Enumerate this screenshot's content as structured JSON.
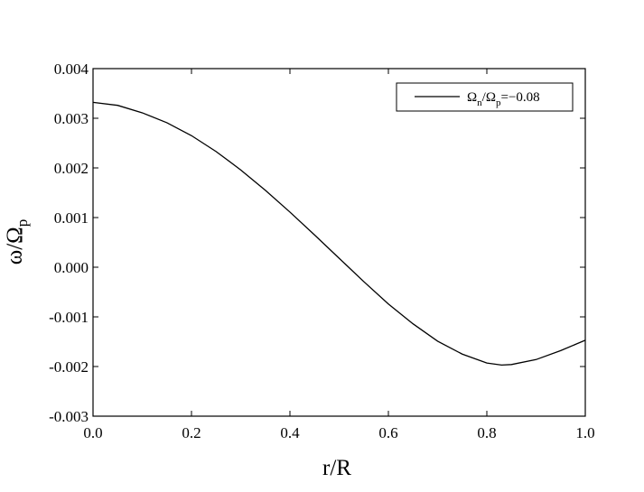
{
  "chart_data": {
    "type": "line",
    "xlabel": "r/R",
    "ylabel": [
      "ω/Ω",
      "p"
    ],
    "x": [
      0,
      0.05,
      0.1,
      0.15,
      0.2,
      0.25,
      0.3,
      0.35,
      0.4,
      0.45,
      0.5,
      0.55,
      0.6,
      0.65,
      0.7,
      0.75,
      0.8,
      0.83,
      0.85,
      0.9,
      0.95,
      1.0
    ],
    "series": [
      {
        "name": [
          "Ω",
          "n",
          "/Ω",
          "p",
          "=−0.08"
        ],
        "color": "#000000",
        "values": [
          0.00332,
          0.00326,
          0.00311,
          0.00291,
          0.00265,
          0.00233,
          0.00196,
          0.00155,
          0.00111,
          0.00065,
          0.00018,
          -0.00029,
          -0.00074,
          -0.00114,
          -0.00149,
          -0.00175,
          -0.00193,
          -0.00197,
          -0.00196,
          -0.00186,
          -0.00168,
          -0.00147
        ]
      }
    ],
    "xlim": [
      0,
      1.0
    ],
    "xticks": [
      {
        "value": 0,
        "label": "0.0"
      },
      0.2,
      0.4,
      0.6,
      0.8,
      {
        "value": 1.0,
        "label": "1.0"
      }
    ],
    "ylim": [
      -0.003,
      0.004
    ],
    "yticks": [
      -0.003,
      -0.002,
      -0.001,
      {
        "value": 0,
        "label": "0.000"
      },
      0.001,
      0.002,
      0.003,
      0.004
    ],
    "legend": "upper right"
  }
}
